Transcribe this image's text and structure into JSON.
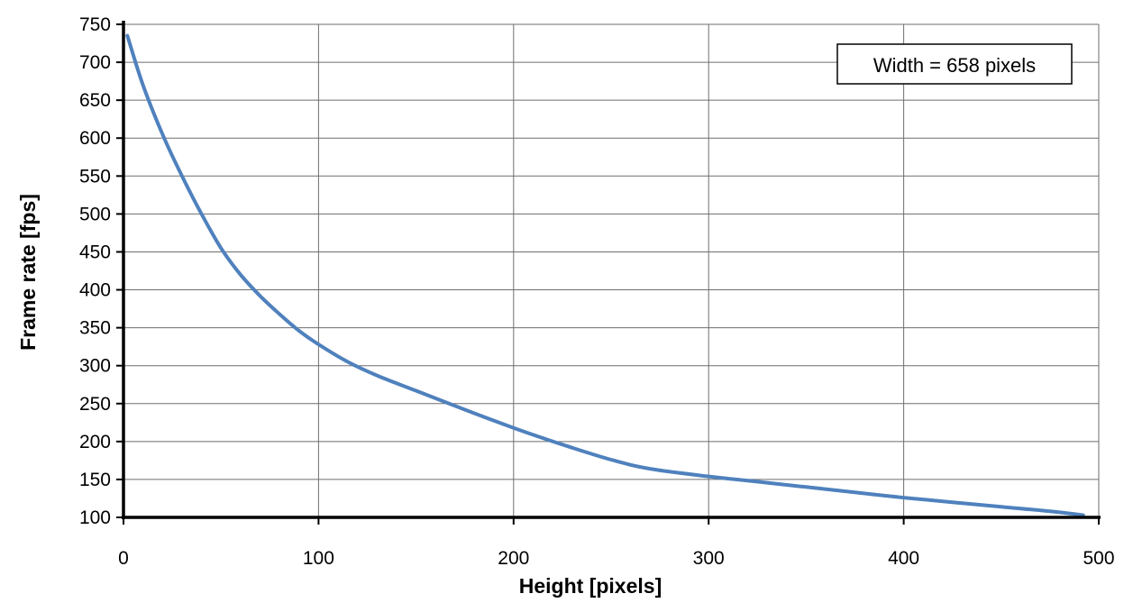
{
  "chart_data": {
    "type": "line",
    "title": "",
    "xlabel": "Height [pixels]",
    "ylabel": "Frame rate [fps]",
    "xlim": [
      0,
      500
    ],
    "ylim": [
      100,
      750
    ],
    "x_ticks": [
      0,
      100,
      200,
      300,
      400,
      500
    ],
    "y_ticks": [
      100,
      150,
      200,
      250,
      300,
      350,
      400,
      450,
      500,
      550,
      600,
      650,
      700,
      750
    ],
    "grid": true,
    "annotation": "Width = 658 pixels",
    "line_color": "#4f81bd",
    "series": [
      {
        "x": [
          2,
          10,
          20,
          30,
          40,
          50,
          60,
          70,
          80,
          90,
          100,
          115,
          130,
          150,
          175,
          200,
          225,
          250,
          270,
          300,
          325,
          350,
          375,
          400,
          425,
          450,
          475,
          492
        ],
        "y": [
          735,
          670,
          605,
          550,
          500,
          455,
          420,
          392,
          368,
          346,
          328,
          305,
          287,
          267,
          242,
          218,
          196,
          176,
          164,
          154,
          147,
          140,
          133,
          126,
          120,
          114,
          108,
          103
        ]
      }
    ]
  }
}
